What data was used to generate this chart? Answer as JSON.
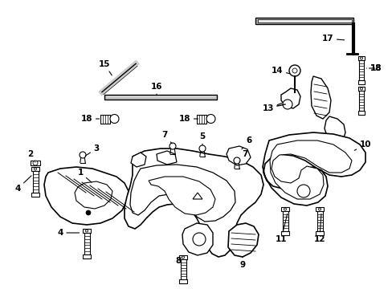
{
  "background_color": "#ffffff",
  "line_color": "#000000",
  "fig_width": 4.89,
  "fig_height": 3.6,
  "dpi": 100,
  "label_fs": 7.5,
  "lw_main": 1.0,
  "lw_thick": 2.5,
  "lw_thin": 0.7
}
